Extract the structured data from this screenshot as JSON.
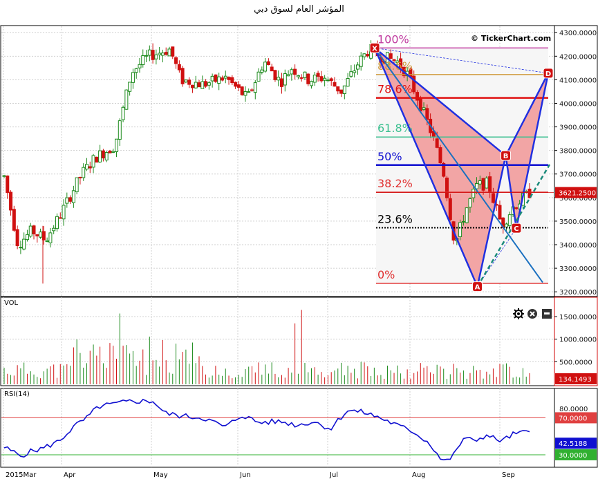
{
  "title": "المؤشر العام لسوق دبي",
  "watermark": "© TickerChart.com",
  "chart_data": [
    {
      "type": "candlestick",
      "name": "price",
      "ylim": [
        3180,
        4330
      ],
      "ticks": [
        3200,
        3300,
        3400,
        3500,
        3600,
        3700,
        3800,
        3900,
        4000,
        4100,
        4200,
        4300
      ],
      "tick_labels": [
        "3200.0000",
        "3300.0000",
        "3400.0000",
        "3500.0000",
        "3600.0000",
        "3700.0000",
        "3800.0000",
        "3900.0000",
        "4000.0000",
        "4100.0000",
        "4200.0000",
        "4300.0000"
      ],
      "last_value_label": "3621.2500",
      "last_value": 3621.25,
      "fibonacci": [
        {
          "label": "100%",
          "value": 4235,
          "color": "#c03ca0"
        },
        {
          "label": "88.6%",
          "value": 4122,
          "color": "#d09a3c"
        },
        {
          "label": "78.6%",
          "value": 4023,
          "color": "#e01010"
        },
        {
          "label": "61.8%",
          "value": 3857,
          "color": "#3cc090"
        },
        {
          "label": "50%",
          "value": 3738,
          "color": "#1010d0"
        },
        {
          "label": "38.2%",
          "value": 3623,
          "color": "#e03030"
        },
        {
          "label": "23.6%",
          "value": 3472,
          "color": "#000000"
        },
        {
          "label": "0%",
          "value": 3236,
          "color": "#e03030"
        }
      ],
      "pattern_points": [
        {
          "label": "X",
          "date_index": 0,
          "value": 4235
        },
        {
          "label": "A",
          "date_index": 29,
          "value": 3222
        },
        {
          "label": "B",
          "date_index": 37,
          "value": 3778
        },
        {
          "label": "C",
          "date_index": 40,
          "value": 3470
        },
        {
          "label": "D",
          "date_index": 49,
          "value": 4128
        }
      ],
      "colors": {
        "up": "#1c8a1c",
        "down": "#d01010",
        "pattern": "#2030e0",
        "fill": "#f08a8a"
      }
    },
    {
      "type": "bar",
      "name": "VOL",
      "title": "VOL",
      "ylim": [
        0,
        1900
      ],
      "ticks": [
        500,
        1000,
        1500
      ],
      "tick_labels": [
        "500.0000",
        "1000.0000",
        "1500.0000"
      ],
      "last_value_label": "134.1493",
      "last_value": 134.1493
    },
    {
      "type": "line",
      "name": "RSI(14)",
      "title": "RSI(14)",
      "ylim": [
        18,
        92
      ],
      "levels": [
        {
          "value": 70,
          "label": "70.0000",
          "color": "#e04040"
        },
        {
          "value": 30,
          "label": "30.0000",
          "color": "#30b030"
        }
      ],
      "ticks": [
        80
      ],
      "tick_labels": [
        "80.0000"
      ],
      "last_value_label": "42.5188",
      "last_value": 42.5188,
      "series_color": "#1010d0"
    }
  ],
  "x_axis": {
    "labels": [
      "2015Mar",
      "Apr",
      "May",
      "Jun",
      "Jul",
      "Aug",
      "Sep"
    ]
  },
  "icons": [
    "gear-icon",
    "close-icon",
    "minimize-icon"
  ]
}
